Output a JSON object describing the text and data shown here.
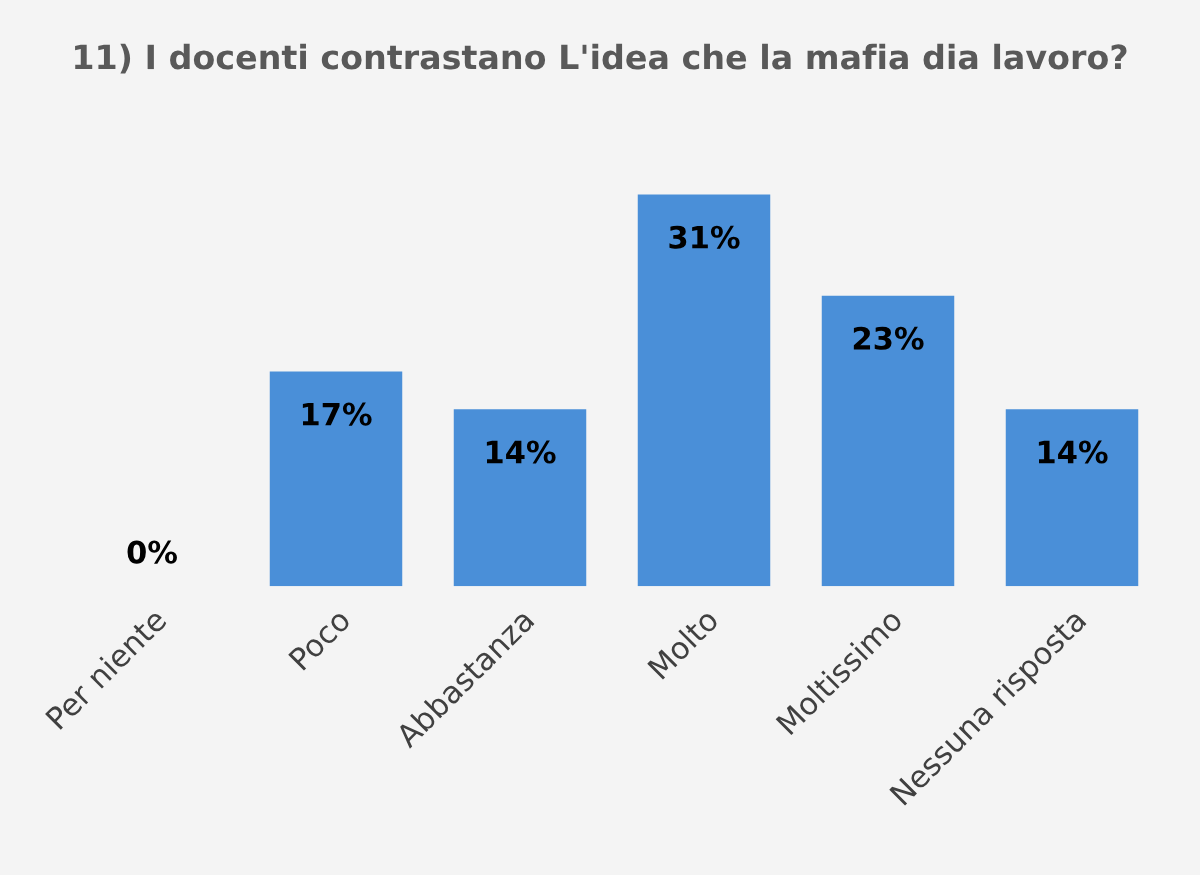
{
  "chart_data": {
    "type": "bar",
    "title": "11) I docenti contrastano L'idea che la mafia dia lavoro?",
    "categories": [
      "Per niente",
      "Poco",
      "Abbastanza",
      "Molto",
      "Moltissimo",
      "Nessuna risposta"
    ],
    "values": [
      0,
      17,
      14,
      31,
      23,
      14
    ],
    "value_labels": [
      "0%",
      "17%",
      "14%",
      "31%",
      "23%",
      "14%"
    ],
    "color": "#4a8fd8"
  }
}
